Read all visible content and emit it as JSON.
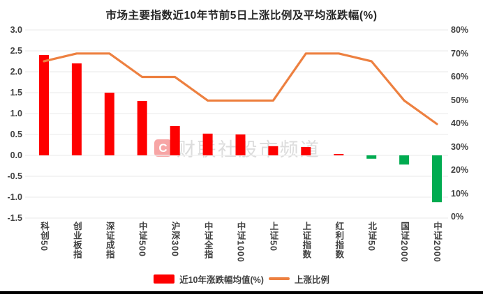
{
  "title": "市场主要指数近10年节前5日上涨比例及平均涨跌幅(%)",
  "watermark": {
    "logo_letter": "C",
    "text": "财联社股市频道"
  },
  "legend": [
    {
      "label": "近10年涨跌幅均值(%)",
      "type": "bar"
    },
    {
      "label": "上涨比例",
      "type": "line"
    }
  ],
  "colors": {
    "bar_positive": "#fe0000",
    "bar_negative": "#00ab50",
    "line": "#ed8040",
    "grid": "#ededed",
    "tick_text": "#404040",
    "border_bottom": "#000000"
  },
  "chart_data": {
    "type": "bar+line combo",
    "title": "市场主要指数近10年节前5日上涨比例及平均涨跌幅(%)",
    "categories": [
      "科创50",
      "创业板指",
      "深证成指",
      "中证500",
      "沪深300",
      "中证全指",
      "中证1000",
      "上证50",
      "上证指数",
      "红利指数",
      "北证50",
      "国证2000",
      "中证2000"
    ],
    "series": [
      {
        "name": "近10年涨跌幅均值(%)",
        "type": "bar",
        "axis": "left",
        "values": [
          2.4,
          2.2,
          1.5,
          1.3,
          0.7,
          0.52,
          0.5,
          0.22,
          0.2,
          0.03,
          -0.08,
          -0.22,
          -1.12
        ]
      },
      {
        "name": "上涨比例",
        "type": "line",
        "axis": "right",
        "values_pct": [
          66.7,
          70,
          70,
          60,
          60,
          50,
          50,
          50,
          70,
          70,
          66.7,
          50,
          40
        ]
      }
    ],
    "left_axis": {
      "min": -1.5,
      "max": 3.0,
      "step": 0.5,
      "ticks": [
        "3.0",
        "2.5",
        "2.0",
        "1.5",
        "1.0",
        "0.5",
        "0.0",
        "-0.5",
        "-1.0",
        "-1.5"
      ]
    },
    "right_axis": {
      "min": 0,
      "max": 80,
      "step": 10,
      "ticks": [
        "80%",
        "70%",
        "60%",
        "50%",
        "40%",
        "30%",
        "20%",
        "10%",
        "0%"
      ]
    },
    "grid": true,
    "legend_position": "bottom"
  }
}
